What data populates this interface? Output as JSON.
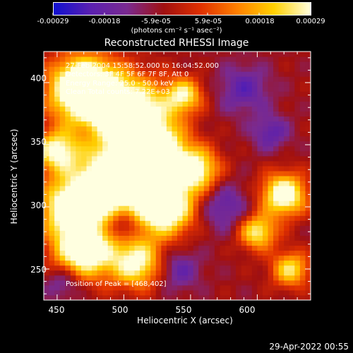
{
  "chart_data": {
    "type": "heatmap",
    "title": "Reconstructed RHESSI Image",
    "xlabel": "Heliocentric X (arcsec)",
    "ylabel": "Heliocentric Y (arcsec)",
    "xlim": [
      440,
      640
    ],
    "ylim": [
      225,
      425
    ],
    "x_ticks": [
      "450",
      "500",
      "550",
      "600"
    ],
    "y_ticks": [
      "250",
      "300",
      "350",
      "400"
    ],
    "colorbar": {
      "ticks": [
        "-0.00029",
        "-0.00018",
        "-5.9e-05",
        "5.9e-05",
        "0.00018",
        "0.00029"
      ],
      "units": "(photons cm⁻² s⁻¹ asec⁻²)",
      "range": [
        -0.00029,
        0.00029
      ],
      "colors": [
        "#1010d0",
        "#5a20b0",
        "#7a2a90",
        "#a01010",
        "#e03000",
        "#ff8000",
        "#ffd000",
        "#ffffe0"
      ]
    },
    "annotations": {
      "time": "27-Feb-2004 15:58:52.000 to 16:04:52.000",
      "detectors": "Detectors: 3F 4F 5F 6F 7F 8F, Att 0",
      "energy": "Energy Range: 25.0 - 50.0 keV",
      "clean": "Clean     Total counts: 7.22E+03",
      "peak": "Position of Peak = [468,402]"
    },
    "peak_position": [
      468,
      402
    ],
    "timestamp": "29-Apr-2022 00:55"
  }
}
